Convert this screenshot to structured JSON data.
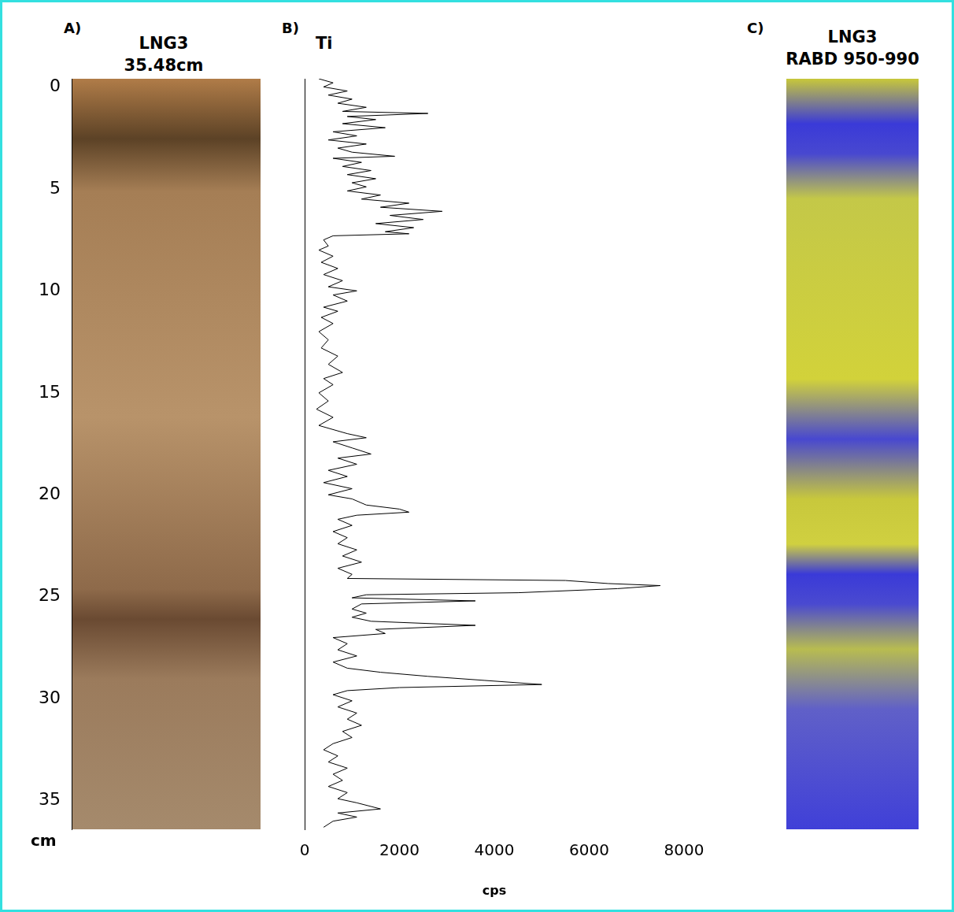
{
  "chart_data": [
    {
      "type": "image",
      "panel": "A)",
      "title": [
        "LNG3",
        "35.48cm"
      ],
      "ylabel": "cm",
      "ylim": [
        -0.4,
        36.4
      ],
      "yticks": [
        0,
        5,
        10,
        15,
        20,
        25,
        30,
        35
      ],
      "tick_labels": "y",
      "grid": false
    },
    {
      "type": "line",
      "panel": "B)",
      "title": "Ti",
      "xlabel": "cps",
      "color": "#000000",
      "grid": false,
      "tick_labels": "x",
      "xlim": [
        0,
        8000
      ],
      "xticks": [
        0,
        2000,
        4000,
        6000,
        8000
      ],
      "ylim": [
        -0.4,
        36.4
      ],
      "x": [
        300,
        600,
        400,
        900,
        500,
        1000,
        700,
        1300,
        800,
        2600,
        900,
        1500,
        800,
        1700,
        600,
        1100,
        500,
        1300,
        700,
        1000,
        1900,
        600,
        1200,
        800,
        1400,
        900,
        1500,
        1000,
        1300,
        900,
        1600,
        1200,
        2200,
        1600,
        2900,
        1800,
        2500,
        1500,
        2300,
        1700,
        2200,
        600,
        400,
        500,
        300,
        600,
        350,
        700,
        400,
        800,
        500,
        1100,
        600,
        900,
        400,
        700,
        350,
        600,
        300,
        500,
        350,
        700,
        500,
        800,
        400,
        600,
        300,
        500,
        250,
        600,
        300,
        900,
        1300,
        600,
        1000,
        1400,
        700,
        1100,
        500,
        900,
        400,
        1000,
        500,
        1000,
        1300,
        2000,
        2200,
        1100,
        700,
        1000,
        600,
        900,
        700,
        1100,
        800,
        1200,
        700,
        1000,
        900,
        5500,
        6400,
        7500,
        6600,
        4500,
        1300,
        1000,
        3600,
        1200,
        1000,
        1300,
        1000,
        1400,
        3600,
        1500,
        1700,
        600,
        900,
        700,
        1100,
        600,
        900,
        1600,
        2600,
        3800,
        5000,
        2000,
        900,
        600,
        1000,
        700,
        1100,
        900,
        1200,
        800,
        1000,
        600,
        400,
        700,
        500,
        900,
        600,
        800,
        500,
        900,
        700,
        1100,
        1600,
        700,
        1100,
        600,
        400
      ],
      "y": [
        -0.4,
        -0.2,
        0,
        0.2,
        0.4,
        0.6,
        0.8,
        1.0,
        1.2,
        1.3,
        1.45,
        1.6,
        1.8,
        2.0,
        2.2,
        2.4,
        2.6,
        2.8,
        3.0,
        3.2,
        3.4,
        3.5,
        3.7,
        3.9,
        4.1,
        4.3,
        4.5,
        4.7,
        4.9,
        5.1,
        5.3,
        5.5,
        5.7,
        5.9,
        6.1,
        6.3,
        6.5,
        6.7,
        6.9,
        7.1,
        7.2,
        7.3,
        7.5,
        7.8,
        8.0,
        8.3,
        8.6,
        8.9,
        9.2,
        9.5,
        9.8,
        10.0,
        10.2,
        10.5,
        10.8,
        11.0,
        11.3,
        11.6,
        12.0,
        12.4,
        12.8,
        13.2,
        13.6,
        14.0,
        14.3,
        14.6,
        15.0,
        15.4,
        15.8,
        16.2,
        16.6,
        17.0,
        17.2,
        17.4,
        17.7,
        18.0,
        18.2,
        18.5,
        18.8,
        19.1,
        19.4,
        19.7,
        20.0,
        20.2,
        20.5,
        20.7,
        20.85,
        21.0,
        21.2,
        21.5,
        21.8,
        22.1,
        22.4,
        22.7,
        23.0,
        23.3,
        23.6,
        23.9,
        24.1,
        24.2,
        24.35,
        24.45,
        24.6,
        24.8,
        24.9,
        25.05,
        25.2,
        25.35,
        25.6,
        25.8,
        26.0,
        26.2,
        26.4,
        26.6,
        26.8,
        27.0,
        27.3,
        27.6,
        27.9,
        28.2,
        28.5,
        28.7,
        28.9,
        29.1,
        29.3,
        29.45,
        29.6,
        29.8,
        30.1,
        30.4,
        30.7,
        31.0,
        31.3,
        31.6,
        31.9,
        32.2,
        32.5,
        32.8,
        33.1,
        33.4,
        33.7,
        34.0,
        34.3,
        34.6,
        34.9,
        35.1,
        35.4,
        35.6,
        35.8,
        36.0,
        36.3
      ]
    },
    {
      "type": "image",
      "panel": "C)",
      "title": [
        "LNG3",
        "RABD 950-990"
      ],
      "tick_labels": false
    }
  ]
}
